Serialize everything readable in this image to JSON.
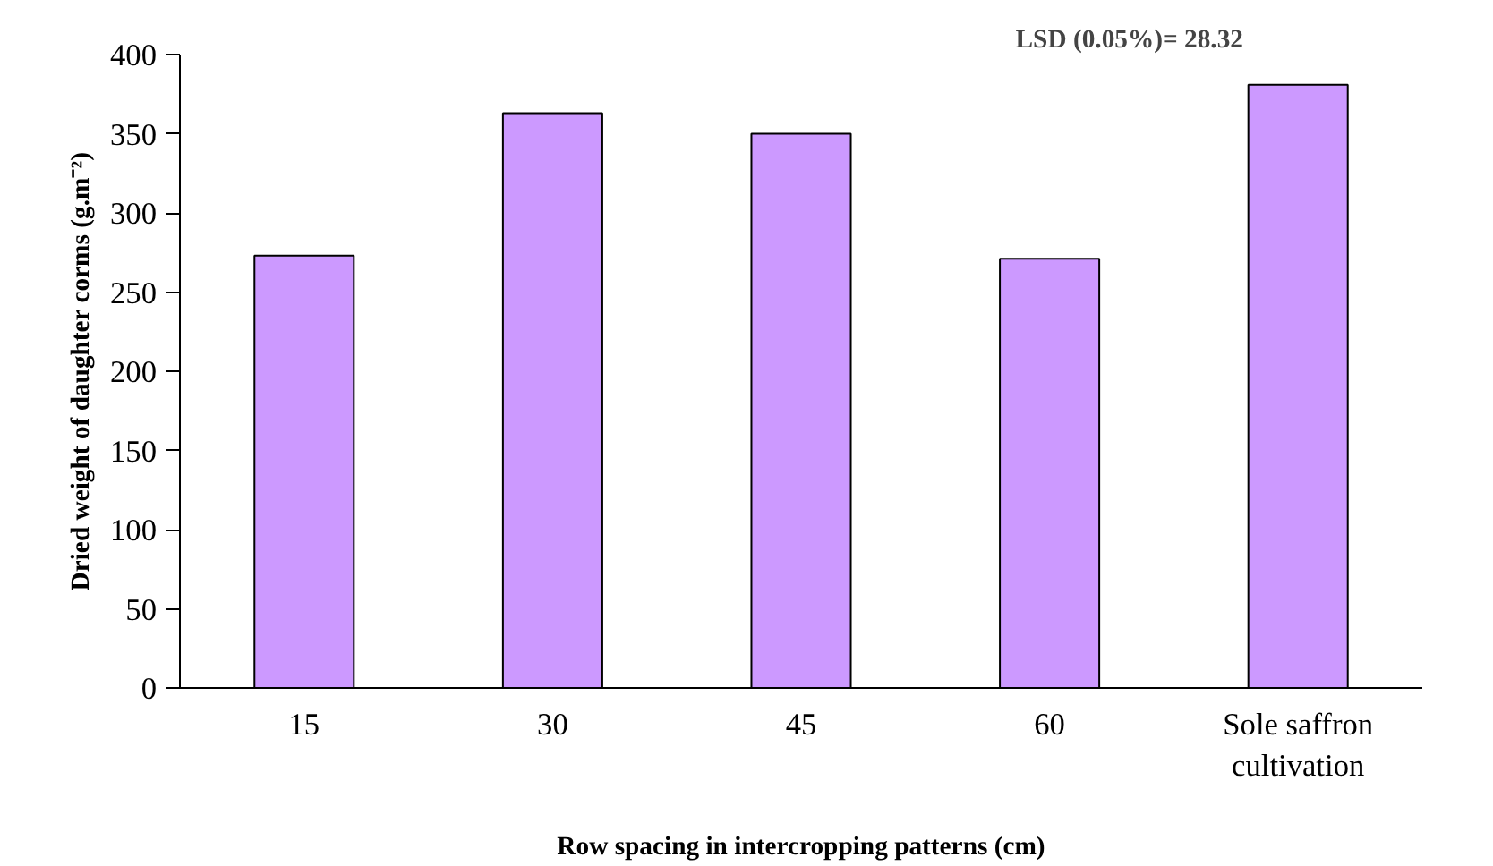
{
  "chart_data": {
    "type": "bar",
    "xlabel": "Row spacing in intercropping patterns (cm)",
    "ylabel": "Dried weight of daughter corms (g.m⁻²)",
    "categories": [
      "15",
      "30",
      "45",
      "60",
      "Sole saffron cultivation"
    ],
    "values": [
      273,
      363,
      350,
      271,
      381
    ],
    "color": "#cc99ff",
    "ylim": [
      0,
      400
    ],
    "yticks": [
      0,
      50,
      100,
      150,
      200,
      250,
      300,
      350,
      400
    ],
    "grid": false,
    "annotations": [
      "LSD (0.05%)= 28.32"
    ]
  }
}
